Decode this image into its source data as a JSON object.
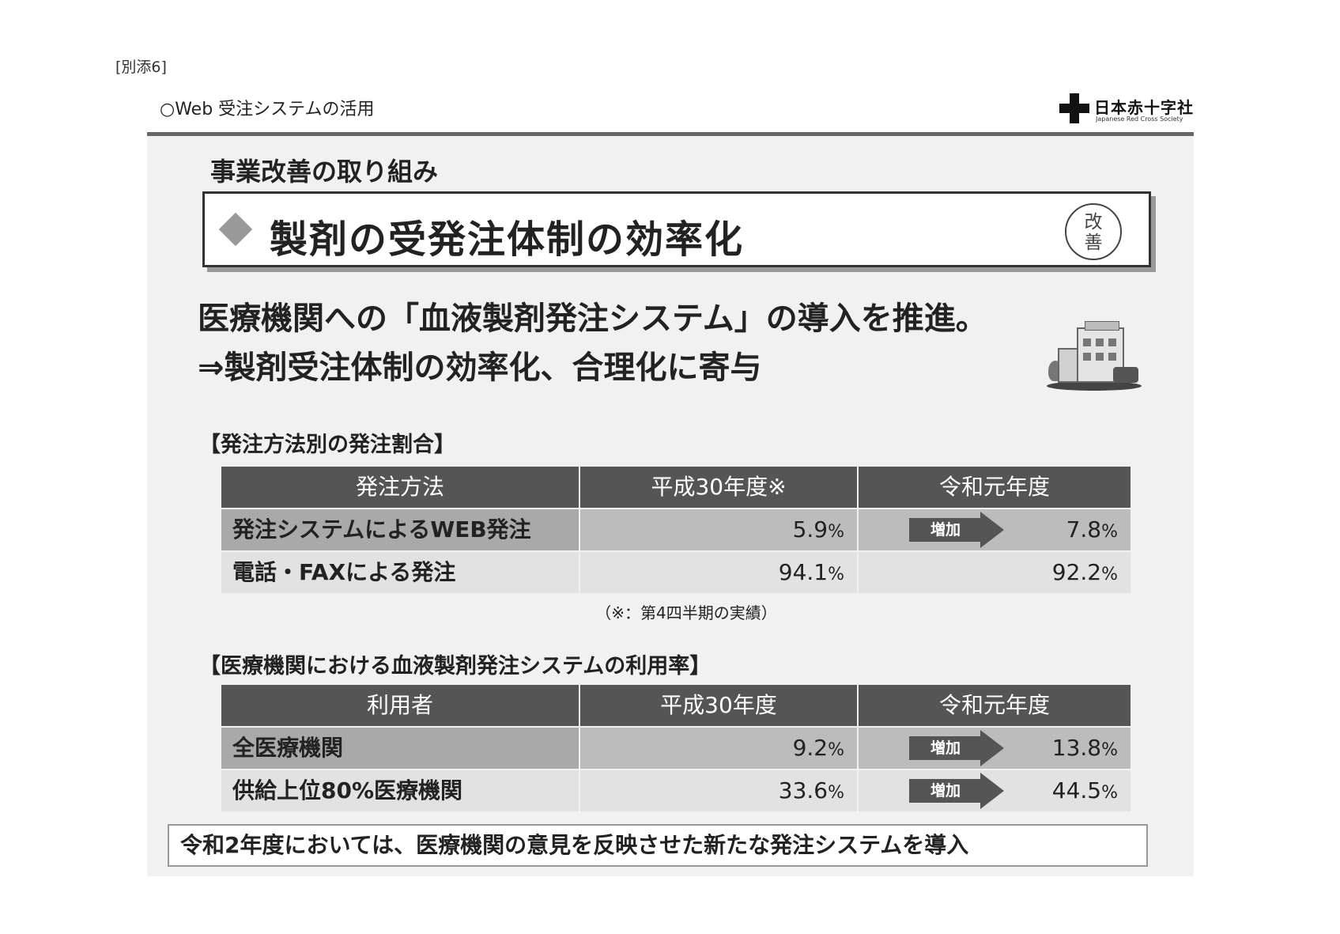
{
  "attachment_label": "[別添6]",
  "header": {
    "title": "○Web 受注システムの活用",
    "logo": {
      "name_jp": "日本赤十字社",
      "name_en": "Japanese Red Cross Society"
    }
  },
  "section_title": "事業改善の取り組み",
  "banner": {
    "text": "製剤の受発注体制の効率化",
    "stamp": [
      "改",
      "善"
    ]
  },
  "main_lines": [
    "医療機関への「血液製剤発注システム」の導入を推進。",
    "⇒製剤受注体制の効率化、合理化に寄与"
  ],
  "table1": {
    "title": "【発注方法別の発注割合】",
    "headers": [
      "発注方法",
      "平成30年度※",
      "令和元年度"
    ],
    "rows": [
      {
        "label": "発注システムによるWEB発注",
        "h30": "5.9",
        "r1": "7.8",
        "unit": "%",
        "arrow": "増加"
      },
      {
        "label": "電話・FAXによる発注",
        "h30": "94.1",
        "r1": "92.2",
        "unit": "%",
        "arrow": ""
      }
    ],
    "footnote": "（※：第4四半期の実績）"
  },
  "table2": {
    "title": "【医療機関における血液製剤発注システムの利用率】",
    "headers": [
      "利用者",
      "平成30年度",
      "令和元年度"
    ],
    "rows": [
      {
        "label": "全医療機関",
        "h30": "9.2",
        "r1": "13.8",
        "unit": "%",
        "arrow": "増加"
      },
      {
        "label": "供給上位80%医療機関",
        "h30": "33.6",
        "r1": "44.5",
        "unit": "%",
        "arrow": "増加"
      }
    ]
  },
  "conclusion": "令和2年度においては、医療機関の意見を反映させた新たな発注システムを導入",
  "colors": {
    "header_bg": "#555555",
    "row_dark": "#bcbcbc",
    "row_light": "#e2e2e2",
    "arrow": "#555555"
  },
  "icons": [
    "red-cross-logo-icon",
    "diamond-bullet-icon",
    "kaizen-stamp-icon",
    "hospital-building-icon",
    "increase-arrow-icon"
  ]
}
